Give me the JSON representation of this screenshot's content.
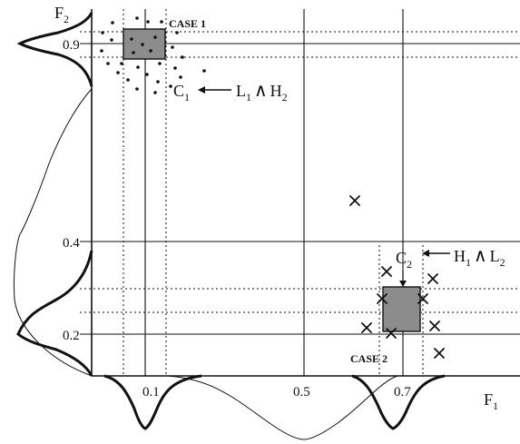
{
  "axes": {
    "x_label": "F",
    "x_label_sub": "1",
    "y_label": "F",
    "y_label_sub": "2",
    "x_ticks": [
      "0.1",
      "0.5",
      "0.7"
    ],
    "y_ticks": [
      "0.9",
      "0.4",
      "0.2"
    ]
  },
  "case1": {
    "label": "CASE 1",
    "centroid": "C",
    "centroid_sub": "1",
    "rule_a": "L",
    "rule_a_sub": "1",
    "rule_op": "∧",
    "rule_b": "H",
    "rule_b_sub": "2"
  },
  "case2": {
    "label": "CASE 2",
    "centroid": "C",
    "centroid_sub": "2",
    "rule_a": "H",
    "rule_a_sub": "1",
    "rule_op": "∧",
    "rule_b": "L",
    "rule_b_sub": "2"
  },
  "colors": {
    "ink": "#111111",
    "box_fill": "#8c8c8c"
  },
  "markers": {
    "case1": "dot",
    "case2": "cross"
  }
}
